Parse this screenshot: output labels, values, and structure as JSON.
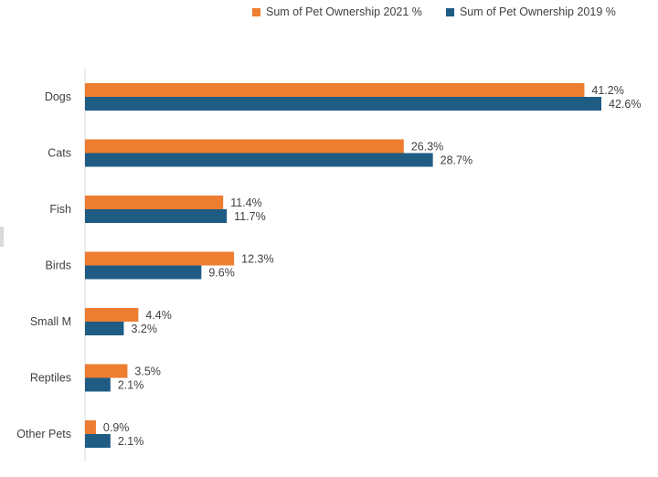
{
  "chart_data": {
    "type": "bar",
    "orientation": "horizontal",
    "categories": [
      "Dogs",
      "Cats",
      "Fish",
      "Birds",
      "Small M",
      "Reptiles",
      "Other Pets"
    ],
    "series": [
      {
        "name": "Sum of Pet Ownership 2021 %",
        "values": [
          41.2,
          26.3,
          11.4,
          12.3,
          4.4,
          3.5,
          0.9
        ],
        "labels": [
          "41.2%",
          "26.3%",
          "11.4%",
          "12.3%",
          "4.4%",
          "3.5%",
          "0.9%"
        ]
      },
      {
        "name": "Sum of Pet Ownership 2019 %",
        "values": [
          42.6,
          28.7,
          11.7,
          9.6,
          3.2,
          2.1,
          2.1
        ],
        "labels": [
          "42.6%",
          "28.7%",
          "11.7%",
          "9.6%",
          "3.2%",
          "2.1%",
          "2.1%"
        ]
      }
    ],
    "title": "",
    "xlabel": "",
    "ylabel": "",
    "xlim": [
      0,
      43
    ],
    "grid": false,
    "legend_position": "top-right",
    "colors": {
      "series_2021": "#ED7D31",
      "series_2019": "#1F5C84",
      "axis": "#D9D9D9",
      "text": "#404040"
    }
  },
  "legend": {
    "items": [
      {
        "label": "Sum of Pet Ownership 2021 %",
        "color": "#ED7D31"
      },
      {
        "label": "Sum of Pet Ownership 2019 %",
        "color": "#1F5C84"
      }
    ]
  }
}
